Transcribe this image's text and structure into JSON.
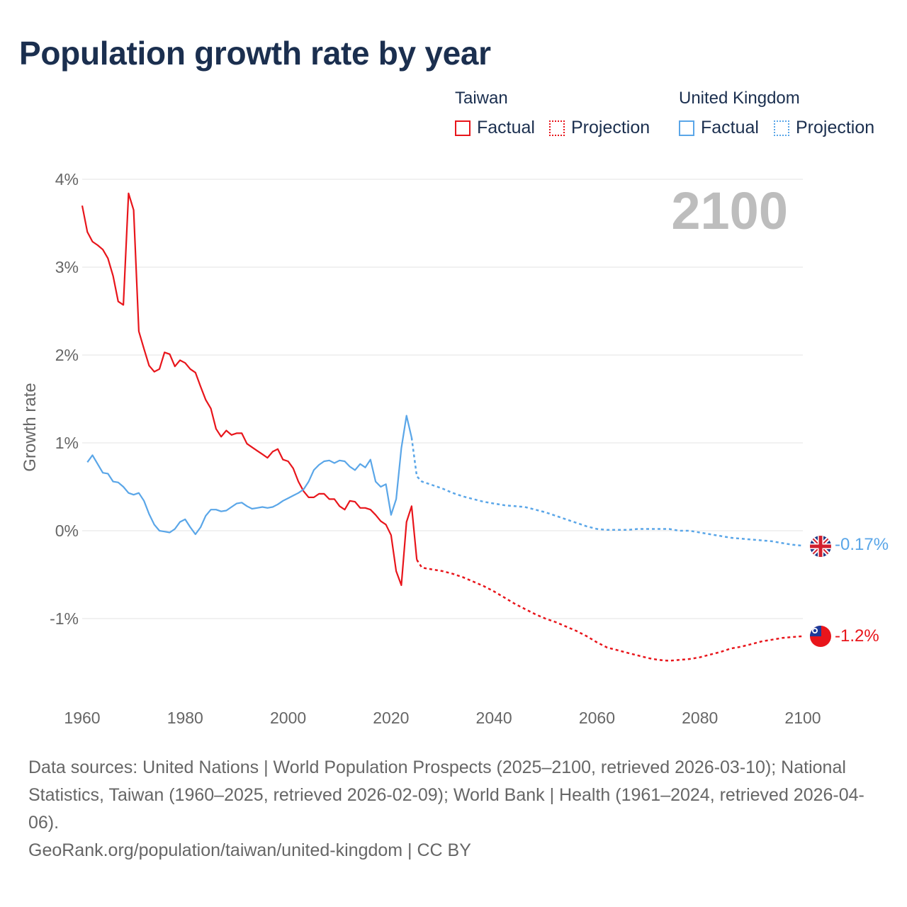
{
  "title": "Population growth rate by year",
  "legend": {
    "groups": [
      {
        "name": "Taiwan",
        "color": "#e8151b",
        "factual_label": "Factual",
        "projection_label": "Projection"
      },
      {
        "name": "United Kingdom",
        "color": "#5aa6e8",
        "factual_label": "Factual",
        "projection_label": "Projection"
      }
    ]
  },
  "year_watermark": "2100",
  "chart_data": {
    "type": "line",
    "title": "Population growth rate by year",
    "xlabel": "",
    "ylabel": "Growth rate",
    "xlim": [
      1960,
      2100
    ],
    "ylim": [
      -1.8,
      4.1
    ],
    "y_ticks": [
      4,
      3,
      2,
      1,
      0,
      -1
    ],
    "y_tick_labels": [
      "4%",
      "3%",
      "2%",
      "1%",
      "0%",
      "-1%"
    ],
    "x_ticks": [
      1960,
      1980,
      2000,
      2020,
      2040,
      2060,
      2080,
      2100
    ],
    "x_tick_labels": [
      "1960",
      "1980",
      "2000",
      "2020",
      "2040",
      "2060",
      "2080",
      "2100"
    ],
    "grid": true,
    "series": [
      {
        "name": "Taiwan",
        "color": "#e8151b",
        "end_label": "-1.2%",
        "flag": "taiwan-flag-icon",
        "factual": {
          "x": [
            1960,
            1961,
            1962,
            1963,
            1964,
            1965,
            1966,
            1967,
            1968,
            1969,
            1970,
            1971,
            1972,
            1973,
            1974,
            1975,
            1976,
            1977,
            1978,
            1979,
            1980,
            1981,
            1982,
            1983,
            1984,
            1985,
            1986,
            1987,
            1988,
            1989,
            1990,
            1991,
            1992,
            1993,
            1994,
            1995,
            1996,
            1997,
            1998,
            1999,
            2000,
            2001,
            2002,
            2003,
            2004,
            2005,
            2006,
            2007,
            2008,
            2009,
            2010,
            2011,
            2012,
            2013,
            2014,
            2015,
            2016,
            2017,
            2018,
            2019,
            2020,
            2021,
            2022,
            2023,
            2024,
            2025
          ],
          "y": [
            3.7,
            3.4,
            3.29,
            3.25,
            3.2,
            3.1,
            2.9,
            2.61,
            2.57,
            3.84,
            3.65,
            2.27,
            2.07,
            1.88,
            1.81,
            1.84,
            2.03,
            2.01,
            1.87,
            1.94,
            1.91,
            1.84,
            1.8,
            1.64,
            1.49,
            1.39,
            1.16,
            1.07,
            1.14,
            1.09,
            1.11,
            1.11,
            0.99,
            0.95,
            0.91,
            0.87,
            0.83,
            0.9,
            0.93,
            0.81,
            0.79,
            0.71,
            0.56,
            0.45,
            0.38,
            0.38,
            0.42,
            0.42,
            0.36,
            0.36,
            0.28,
            0.24,
            0.34,
            0.33,
            0.26,
            0.26,
            0.24,
            0.18,
            0.11,
            0.07,
            -0.05,
            -0.46,
            -0.62,
            0.1,
            0.28,
            -0.33
          ]
        },
        "projection": {
          "x": [
            2025,
            2026,
            2028,
            2030,
            2032,
            2034,
            2036,
            2038,
            2040,
            2042,
            2044,
            2046,
            2048,
            2050,
            2052,
            2054,
            2056,
            2058,
            2060,
            2062,
            2064,
            2066,
            2068,
            2070,
            2072,
            2074,
            2076,
            2078,
            2080,
            2082,
            2084,
            2086,
            2088,
            2090,
            2092,
            2094,
            2096,
            2098,
            2100
          ],
          "y": [
            -0.33,
            -0.42,
            -0.44,
            -0.46,
            -0.49,
            -0.53,
            -0.58,
            -0.63,
            -0.69,
            -0.76,
            -0.83,
            -0.89,
            -0.95,
            -1.0,
            -1.04,
            -1.09,
            -1.14,
            -1.2,
            -1.27,
            -1.33,
            -1.36,
            -1.39,
            -1.42,
            -1.45,
            -1.47,
            -1.48,
            -1.47,
            -1.46,
            -1.44,
            -1.41,
            -1.38,
            -1.34,
            -1.32,
            -1.29,
            -1.26,
            -1.24,
            -1.22,
            -1.21,
            -1.2
          ]
        }
      },
      {
        "name": "United Kingdom",
        "color": "#5aa6e8",
        "end_label": "-0.17%",
        "flag": "uk-flag-icon",
        "factual": {
          "x": [
            1961,
            1962,
            1963,
            1964,
            1965,
            1966,
            1967,
            1968,
            1969,
            1970,
            1971,
            1972,
            1973,
            1974,
            1975,
            1976,
            1977,
            1978,
            1979,
            1980,
            1981,
            1982,
            1983,
            1984,
            1985,
            1986,
            1987,
            1988,
            1989,
            1990,
            1991,
            1992,
            1993,
            1994,
            1995,
            1996,
            1997,
            1998,
            1999,
            2000,
            2001,
            2002,
            2003,
            2004,
            2005,
            2006,
            2007,
            2008,
            2009,
            2010,
            2011,
            2012,
            2013,
            2014,
            2015,
            2016,
            2017,
            2018,
            2019,
            2020,
            2021,
            2022,
            2023,
            2024
          ],
          "y": [
            0.78,
            0.86,
            0.76,
            0.66,
            0.65,
            0.56,
            0.55,
            0.5,
            0.43,
            0.41,
            0.43,
            0.34,
            0.19,
            0.07,
            0.0,
            -0.01,
            -0.02,
            0.02,
            0.1,
            0.13,
            0.04,
            -0.04,
            0.04,
            0.17,
            0.24,
            0.24,
            0.22,
            0.23,
            0.27,
            0.31,
            0.32,
            0.28,
            0.25,
            0.26,
            0.27,
            0.26,
            0.27,
            0.3,
            0.34,
            0.37,
            0.4,
            0.43,
            0.47,
            0.56,
            0.69,
            0.75,
            0.79,
            0.8,
            0.77,
            0.8,
            0.79,
            0.73,
            0.69,
            0.76,
            0.72,
            0.81,
            0.56,
            0.5,
            0.53,
            0.18,
            0.36,
            0.94,
            1.31,
            1.06
          ]
        },
        "projection": {
          "x": [
            2024,
            2025,
            2026,
            2028,
            2030,
            2032,
            2034,
            2036,
            2038,
            2040,
            2042,
            2044,
            2046,
            2048,
            2050,
            2052,
            2054,
            2056,
            2058,
            2060,
            2062,
            2064,
            2066,
            2068,
            2070,
            2072,
            2074,
            2076,
            2078,
            2080,
            2082,
            2084,
            2086,
            2088,
            2090,
            2092,
            2094,
            2096,
            2098,
            2100
          ],
          "y": [
            1.06,
            0.62,
            0.56,
            0.52,
            0.48,
            0.43,
            0.39,
            0.36,
            0.33,
            0.31,
            0.29,
            0.28,
            0.27,
            0.24,
            0.21,
            0.17,
            0.13,
            0.09,
            0.05,
            0.02,
            0.01,
            0.01,
            0.01,
            0.02,
            0.02,
            0.02,
            0.02,
            0.0,
            0.0,
            -0.02,
            -0.04,
            -0.06,
            -0.08,
            -0.09,
            -0.1,
            -0.11,
            -0.12,
            -0.14,
            -0.16,
            -0.17
          ]
        }
      }
    ]
  },
  "footer": {
    "sources": "Data sources: United Nations | World Population Prospects (2025–2100, retrieved 2026-03-10); National Statistics, Taiwan (1960–2025, retrieved 2026-02-09); World Bank | Health (1961–2024, retrieved 2026-04-06).",
    "attribution": "GeoRank.org/population/taiwan/united-kingdom | CC BY"
  }
}
